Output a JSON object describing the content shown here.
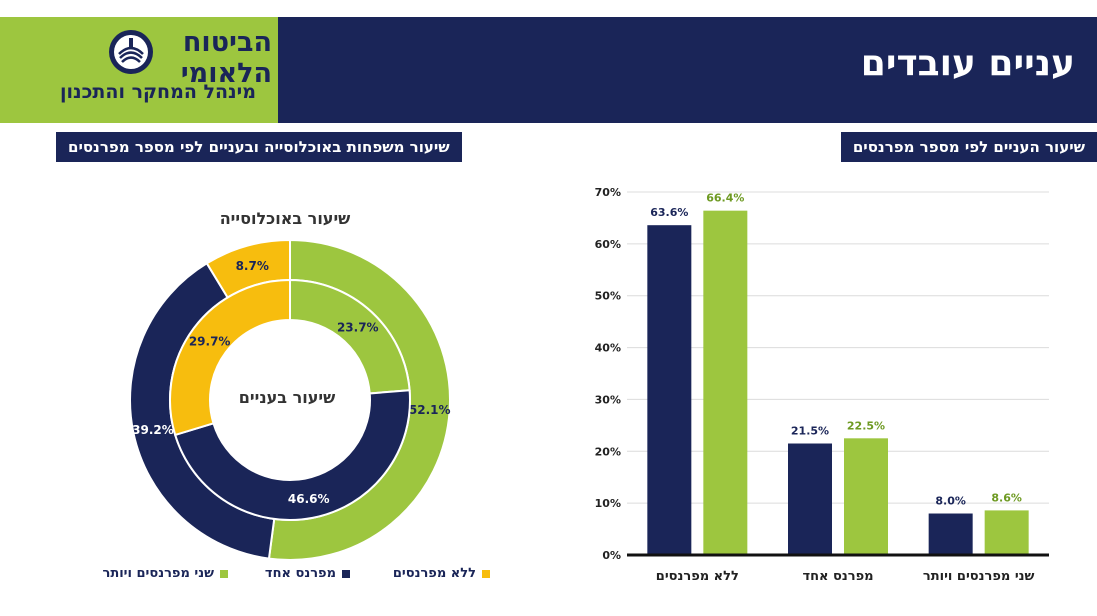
{
  "header": {
    "title": "עניים עובדים",
    "logo_name": "הביטוח הלאומי",
    "logo_subtitle": "מינהל המחקר והתכנון"
  },
  "colors": {
    "navy": "#1a2558",
    "green": "#9dc63f",
    "yellow": "#f7bd0e"
  },
  "left_panel": {
    "section_label": "שיעור משפחות באוכלוסייה ובעניים לפי מספר מפרנסים",
    "outer_ring_title": "שיעור באוכלוסייה",
    "inner_ring_title": "שיעור בעניים",
    "legend": [
      {
        "label": "ללא מפרנסים",
        "color": "#f7bd0e"
      },
      {
        "label": "מפרנס אחד",
        "color": "#1a2558"
      },
      {
        "label": "שני מפרנסים ויותר",
        "color": "#9dc63f"
      }
    ]
  },
  "right_panel": {
    "section_label": "שיעור העניים לפי מספר מפרנסים"
  },
  "chart_data": [
    {
      "type": "pie",
      "subtype": "donut",
      "rings": [
        {
          "name": "שיעור באוכלוסייה",
          "slices": [
            {
              "category": "שני מפרנסים ויותר",
              "value": 52.1,
              "label": "52.1%",
              "color": "#9dc63f"
            },
            {
              "category": "מפרנס אחד",
              "value": 39.2,
              "label": "39.2%",
              "color": "#1a2558"
            },
            {
              "category": "ללא מפרנסים",
              "value": 8.7,
              "label": "8.7%",
              "color": "#f7bd0e"
            }
          ]
        },
        {
          "name": "שיעור בעניים",
          "slices": [
            {
              "category": "שני מפרנסים ויותר",
              "value": 23.7,
              "label": "23.7%",
              "color": "#9dc63f"
            },
            {
              "category": "מפרנס אחד",
              "value": 46.6,
              "label": "46.6%",
              "color": "#1a2558"
            },
            {
              "category": "ללא מפרנסים",
              "value": 29.7,
              "label": "29.7%",
              "color": "#f7bd0e"
            }
          ]
        }
      ]
    },
    {
      "type": "bar",
      "categories": [
        "ללא מפרנסים",
        "מפרנס אחד",
        "שני מפרנסים ויותר"
      ],
      "series": [
        {
          "values": [
            63.6,
            21.5,
            8.0
          ],
          "labels": [
            "63.6%",
            "21.5%",
            "8.0%"
          ],
          "color": "#1a2558"
        },
        {
          "values": [
            66.4,
            22.5,
            8.6
          ],
          "labels": [
            "66.4%",
            "22.5%",
            "8.6%"
          ],
          "color": "#9dc63f"
        }
      ],
      "ylim": [
        0,
        70
      ],
      "yticks": [
        "0%",
        "10%",
        "20%",
        "30%",
        "40%",
        "50%",
        "60%",
        "70%"
      ],
      "grid": true
    }
  ]
}
